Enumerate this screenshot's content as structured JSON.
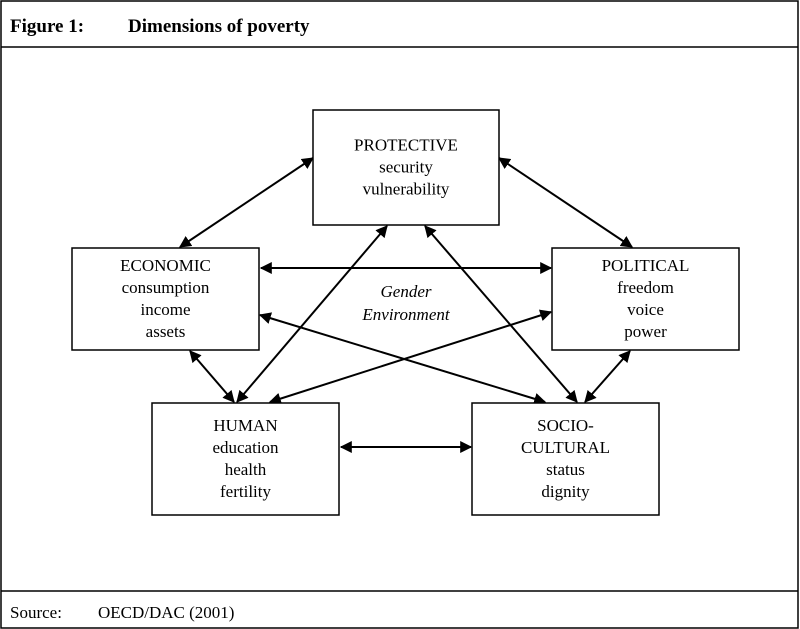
{
  "header": {
    "figure": "Figure 1:",
    "title": "Dimensions of poverty"
  },
  "nodes": [
    {
      "label": "PROTECTIVE",
      "items": [
        "security",
        "vulnerability"
      ]
    },
    {
      "label": "ECONOMIC",
      "items": [
        "consumption",
        "income",
        "assets"
      ]
    },
    {
      "label": "POLITICAL",
      "items": [
        "freedom",
        "voice",
        "power"
      ]
    },
    {
      "label": "HUMAN",
      "items": [
        "education",
        "health",
        "fertility"
      ]
    },
    {
      "label": "SOCIO-",
      "items": [
        "CULTURAL",
        "status",
        "dignity"
      ]
    }
  ],
  "center": [
    "Gender",
    "Environment"
  ],
  "footer": {
    "label": "Source:",
    "text": "OECD/DAC (2001)"
  }
}
